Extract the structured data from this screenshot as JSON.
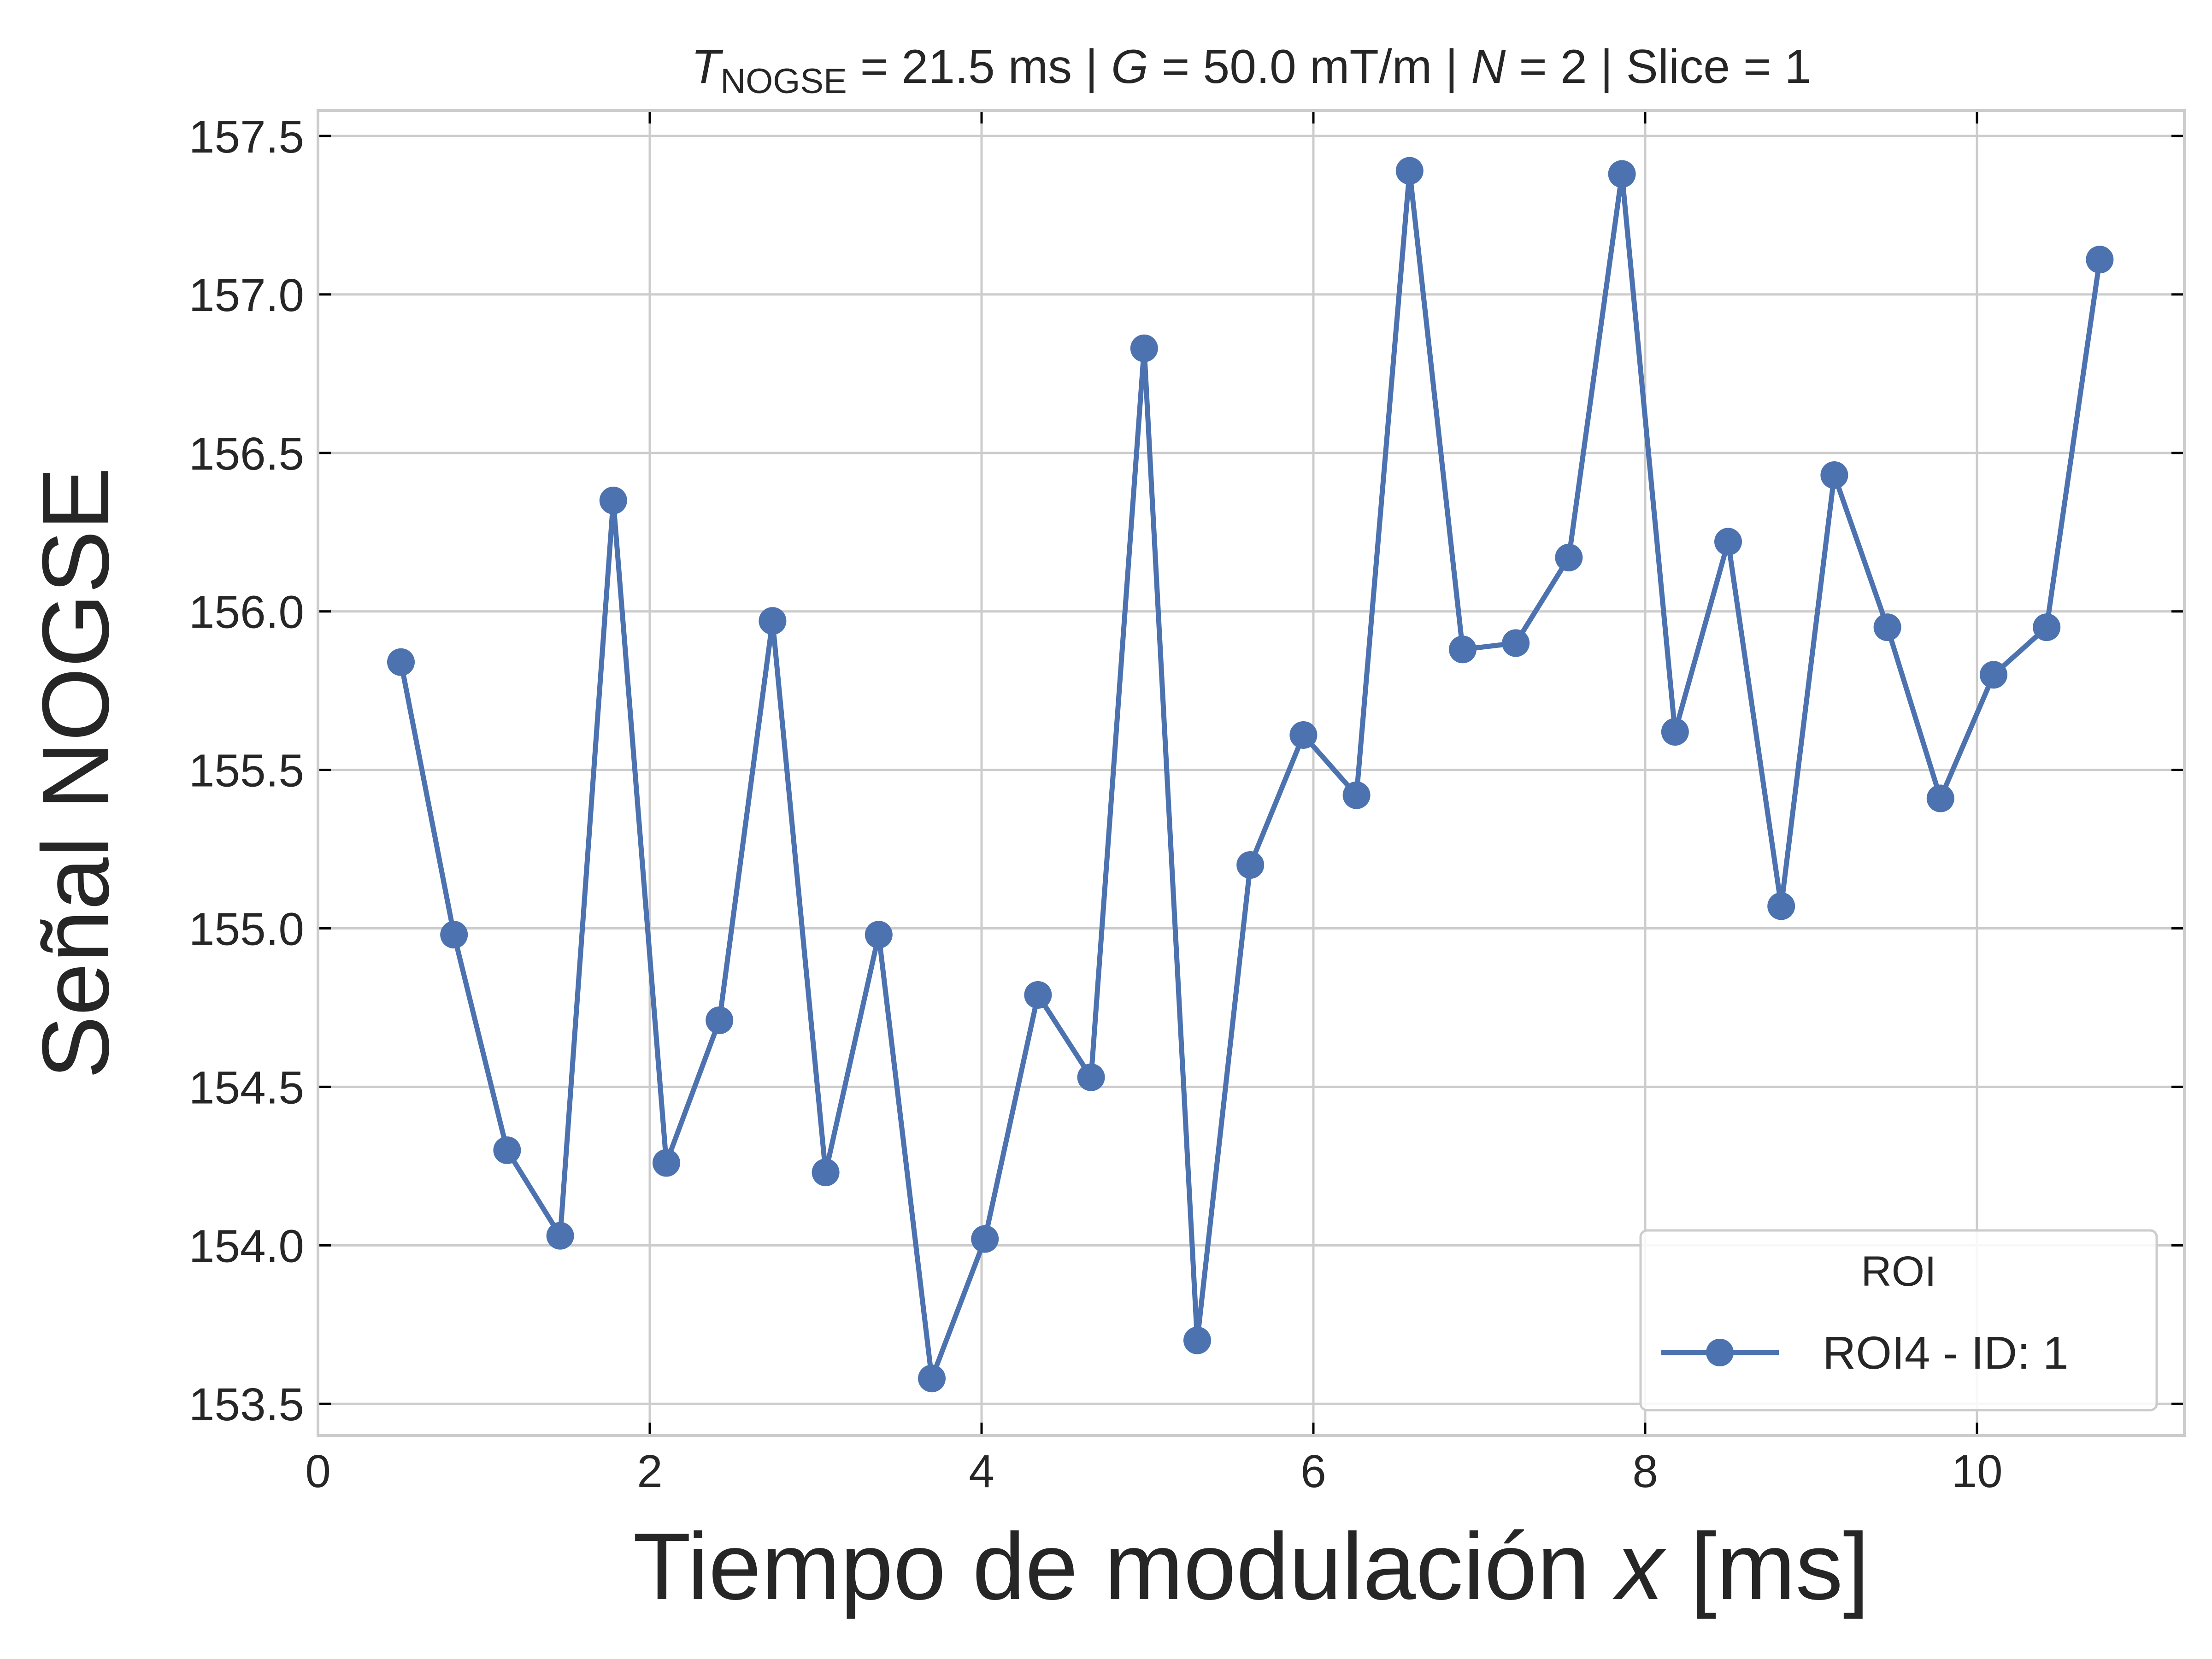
{
  "chart_data": {
    "type": "line",
    "title": {
      "parts": [
        {
          "text": "T",
          "style": "italic"
        },
        {
          "text": "NOGSE",
          "style": "sub"
        },
        {
          "text": " = 21.5 ms | ",
          "style": "normal"
        },
        {
          "text": "G",
          "style": "italic"
        },
        {
          "text": " = 50.0 mT/m | ",
          "style": "normal"
        },
        {
          "text": "N",
          "style": "italic"
        },
        {
          "text": " = 2 | Slice = 1",
          "style": "normal"
        }
      ]
    },
    "xlabel": {
      "parts": [
        {
          "text": "Tiempo de modulación ",
          "style": "normal"
        },
        {
          "text": "x",
          "style": "italic"
        },
        {
          "text": " [ms]",
          "style": "normal"
        }
      ]
    },
    "ylabel": "Señal NOGSE",
    "xlim": [
      0,
      11.25
    ],
    "ylim": [
      153.4,
      157.58
    ],
    "xticks": [
      0,
      2,
      4,
      6,
      8,
      10
    ],
    "xtick_labels": [
      "0",
      "2",
      "4",
      "6",
      "8",
      "10"
    ],
    "yticks": [
      153.5,
      154.0,
      154.5,
      155.0,
      155.5,
      156.0,
      156.5,
      157.0,
      157.5
    ],
    "ytick_labels": [
      "153.5",
      "154.0",
      "154.5",
      "155.0",
      "155.5",
      "156.0",
      "156.5",
      "157.0",
      "157.5"
    ],
    "grid": true,
    "legend": {
      "title": "ROI",
      "placement": "lower-right"
    },
    "series": [
      {
        "name": "ROI4 - ID: 1",
        "color": "#4c72b0",
        "marker": "circle",
        "x": [
          0.5,
          0.82,
          1.14,
          1.46,
          1.78,
          2.1,
          2.42,
          2.74,
          3.06,
          3.38,
          3.7,
          4.02,
          4.34,
          4.66,
          4.98,
          5.3,
          5.62,
          5.94,
          6.26,
          6.58,
          6.9,
          7.22,
          7.54,
          7.86,
          8.18,
          8.5,
          8.82,
          9.14,
          9.46,
          9.78,
          10.1,
          10.42,
          10.74
        ],
        "y": [
          155.84,
          154.98,
          154.3,
          154.03,
          156.35,
          154.26,
          154.71,
          155.97,
          154.23,
          154.98,
          153.58,
          154.02,
          154.79,
          154.53,
          156.83,
          153.7,
          155.2,
          155.61,
          155.42,
          157.39,
          155.88,
          155.9,
          156.17,
          157.38,
          155.62,
          156.22,
          155.07,
          156.43,
          155.95,
          155.41,
          155.8,
          155.95,
          157.11
        ]
      }
    ]
  }
}
